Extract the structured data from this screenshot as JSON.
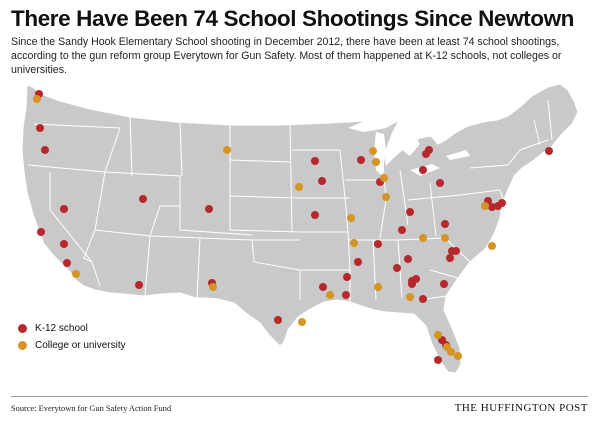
{
  "title": "There Have Been 74 School Shootings Since Newtown",
  "subtitle": "Since the Sandy Hook Elementary School shooting in December 2012, there have been at least 74 school shootings, according to the gun reform group Everytown for Gun Safety. Most of them happened at K-12 schools, not colleges or universities.",
  "legend": {
    "k12": {
      "label": "K-12 school",
      "color": "#b5282b"
    },
    "college": {
      "label": "College or university",
      "color": "#d69424"
    }
  },
  "colors": {
    "land": "#c9c9c9",
    "borders": "#ffffff"
  },
  "source": "Source: Everytown for Gun Safety Action Fund",
  "brand": "THE HUFFINGTON POST"
}
